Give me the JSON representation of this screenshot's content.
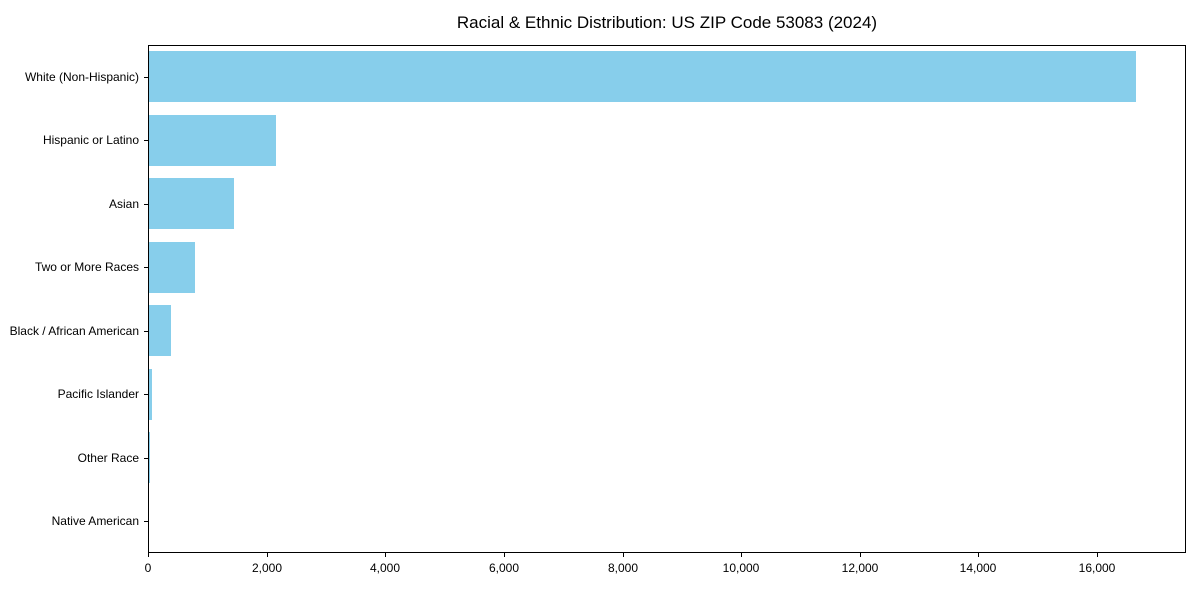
{
  "chart_data": {
    "type": "bar",
    "orientation": "horizontal",
    "title": "Racial & Ethnic Distribution: US ZIP Code 53083 (2024)",
    "categories": [
      "White (Non-Hispanic)",
      "Hispanic or Latino",
      "Asian",
      "Two or More Races",
      "Black / African American",
      "Pacific Islander",
      "Other Race",
      "Native American"
    ],
    "values": [
      16660,
      2160,
      1450,
      795,
      390,
      60,
      25,
      5
    ],
    "bar_color": "#87CEEB",
    "xlim": [
      0,
      17500
    ],
    "xticks": [
      0,
      2000,
      4000,
      6000,
      8000,
      10000,
      12000,
      14000,
      16000
    ],
    "xticklabels": [
      "0",
      "2,000",
      "4,000",
      "6,000",
      "8,000",
      "10,000",
      "12,000",
      "14,000",
      "16,000"
    ],
    "xlabel": "",
    "ylabel": "",
    "grid": false,
    "legend": null,
    "axis_color": "#000000",
    "text_color": "#000000",
    "background_color": "#ffffff"
  }
}
